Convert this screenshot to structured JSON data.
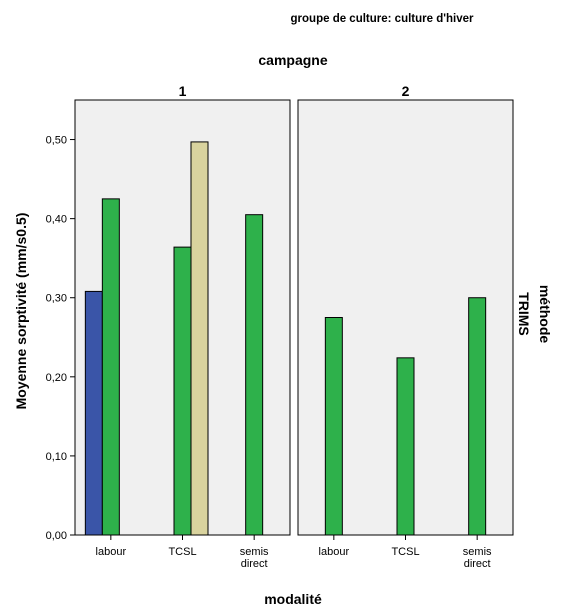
{
  "chart_data": {
    "type": "bar",
    "figure_title": "groupe de culture: culture d'hiver",
    "column_header": "campagne",
    "row_header_line1": "méthode",
    "row_header_line2": "TRIMS",
    "xlabel": "modalité",
    "ylabel": "Moyenne sorptivité (mm/s0.5)",
    "ylim": [
      0,
      0.55
    ],
    "yticks": [
      "0,00",
      "0,10",
      "0,20",
      "0,30",
      "0,40",
      "0,50"
    ],
    "ytick_values": [
      0,
      0.1,
      0.2,
      0.3,
      0.4,
      0.5
    ],
    "categories": [
      [
        "labour"
      ],
      [
        "TCSL"
      ],
      [
        "semis",
        "direct"
      ]
    ],
    "grid": false,
    "series_colors": [
      "#3a55a8",
      "#2eb14b",
      "#d9d39e"
    ],
    "panels": [
      {
        "label": "1",
        "series": [
          {
            "values": [
              0.308,
              null,
              null
            ]
          },
          {
            "values": [
              0.425,
              0.364,
              0.405
            ]
          },
          {
            "values": [
              null,
              0.497,
              null
            ]
          }
        ]
      },
      {
        "label": "2",
        "series": [
          {
            "values": [
              null,
              null,
              null
            ]
          },
          {
            "values": [
              0.275,
              0.224,
              0.3
            ]
          },
          {
            "values": [
              null,
              null,
              null
            ]
          }
        ]
      }
    ]
  }
}
